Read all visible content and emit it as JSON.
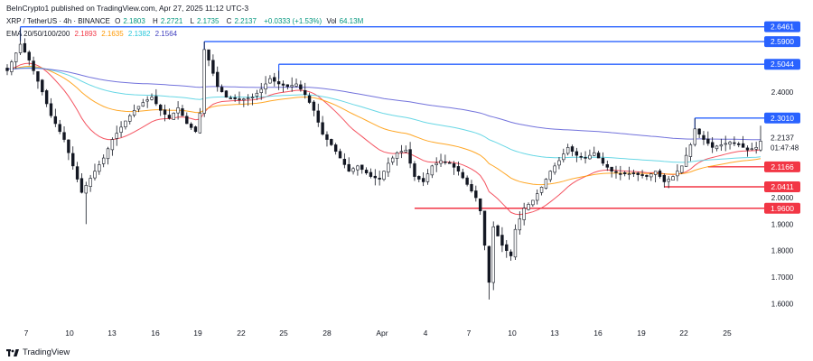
{
  "header": {
    "published": "BeInCrypto1 published on TradingView.com, Apr 27, 2025 11:12 UTC-3",
    "pair": "XRP / TetherUS · 4h · BINANCE",
    "open_label": "O",
    "open": "2.1803",
    "high_label": "H",
    "high": "2.2721",
    "low_label": "L",
    "low": "2.1735",
    "close_label": "C",
    "close": "2.2137",
    "change": "+0.0333 (+1.53%)",
    "volume_label": "Vol",
    "volume": "64.13M",
    "ema_label": "EMA 20/50/100/200",
    "ema20": "2.1893",
    "ema50": "2.1635",
    "ema100": "2.1382",
    "ema200": "2.1564"
  },
  "footer": {
    "brand": "TradingView"
  },
  "colors": {
    "ema20": "#f23645",
    "ema50": "#ff9800",
    "ema100": "#4dd0e1",
    "ema200": "#5b5bd6",
    "resistance": "#2962ff",
    "support": "#f23645",
    "candle": "#131722",
    "current": "#131722"
  },
  "chart_data": {
    "type": "candlestick",
    "unit": "USDT",
    "x_tick_labels": [
      "7",
      "10",
      "13",
      "16",
      "19",
      "22",
      "25",
      "28",
      "Apr",
      "4",
      "7",
      "10",
      "13",
      "16",
      "19",
      "22",
      "25"
    ],
    "y_tick_labels": [
      "1.6000",
      "1.7000",
      "1.8000",
      "1.9000",
      "2.0000",
      "2.4000"
    ],
    "ylim": [
      1.56,
      2.72
    ],
    "resistance_levels": [
      "2.6461",
      "2.5900",
      "2.5044",
      "2.3010"
    ],
    "support_levels": [
      "2.1166",
      "2.0411",
      "1.9600"
    ],
    "current_price": "2.2137",
    "countdown": "01:47:48",
    "close_anchors": [
      [
        0,
        2.48
      ],
      [
        3,
        2.58
      ],
      [
        5,
        2.52
      ],
      [
        8,
        2.4
      ],
      [
        10,
        2.31
      ],
      [
        13,
        2.22
      ],
      [
        15,
        2.12
      ],
      [
        17,
        2.02
      ],
      [
        20,
        2.1
      ],
      [
        22,
        2.15
      ],
      [
        24,
        2.22
      ],
      [
        27,
        2.29
      ],
      [
        29,
        2.33
      ],
      [
        31,
        2.36
      ],
      [
        33,
        2.38
      ],
      [
        35,
        2.33
      ],
      [
        37,
        2.3
      ],
      [
        39,
        2.34
      ],
      [
        41,
        2.28
      ],
      [
        43,
        2.25
      ],
      [
        44,
        2.32
      ],
      [
        45,
        2.56
      ],
      [
        46,
        2.52
      ],
      [
        48,
        2.42
      ],
      [
        50,
        2.38
      ],
      [
        53,
        2.37
      ],
      [
        56,
        2.38
      ],
      [
        58,
        2.41
      ],
      [
        60,
        2.45
      ],
      [
        62,
        2.43
      ],
      [
        64,
        2.42
      ],
      [
        66,
        2.43
      ],
      [
        68,
        2.39
      ],
      [
        70,
        2.33
      ],
      [
        72,
        2.24
      ],
      [
        74,
        2.2
      ],
      [
        76,
        2.15
      ],
      [
        78,
        2.1
      ],
      [
        80,
        2.12
      ],
      [
        83,
        2.08
      ],
      [
        85,
        2.07
      ],
      [
        87,
        2.13
      ],
      [
        89,
        2.17
      ],
      [
        91,
        2.18
      ],
      [
        93,
        2.08
      ],
      [
        95,
        2.06
      ],
      [
        97,
        2.12
      ],
      [
        99,
        2.14
      ],
      [
        101,
        2.13
      ],
      [
        103,
        2.1
      ],
      [
        105,
        2.05
      ],
      [
        107,
        2.0
      ],
      [
        108,
        1.95
      ],
      [
        109,
        1.82
      ],
      [
        110,
        1.68
      ],
      [
        111,
        1.89
      ],
      [
        113,
        1.82
      ],
      [
        115,
        1.78
      ],
      [
        116,
        1.88
      ],
      [
        118,
        1.96
      ],
      [
        120,
        1.99
      ],
      [
        122,
        2.04
      ],
      [
        124,
        2.1
      ],
      [
        126,
        2.14
      ],
      [
        128,
        2.19
      ],
      [
        130,
        2.16
      ],
      [
        132,
        2.15
      ],
      [
        134,
        2.17
      ],
      [
        136,
        2.13
      ],
      [
        138,
        2.1
      ],
      [
        140,
        2.09
      ],
      [
        143,
        2.09
      ],
      [
        146,
        2.08
      ],
      [
        148,
        2.1
      ],
      [
        150,
        2.06
      ],
      [
        152,
        2.08
      ],
      [
        154,
        2.12
      ],
      [
        156,
        2.2
      ],
      [
        157,
        2.26
      ],
      [
        159,
        2.22
      ],
      [
        161,
        2.19
      ],
      [
        163,
        2.2
      ],
      [
        165,
        2.21
      ],
      [
        167,
        2.2
      ],
      [
        169,
        2.18
      ],
      [
        171,
        2.19
      ],
      [
        172,
        2.2137
      ]
    ]
  }
}
